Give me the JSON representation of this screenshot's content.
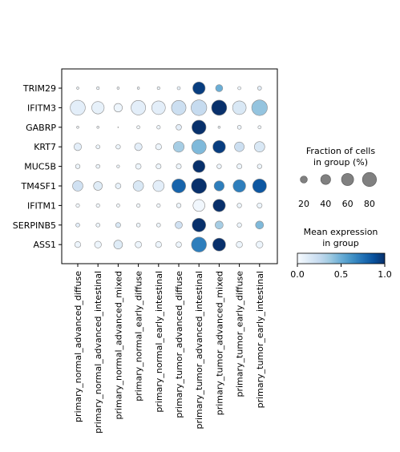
{
  "chart_data": {
    "type": "dotplot",
    "genes": [
      "TRIM29",
      "IFITM3",
      "GABRP",
      "KRT7",
      "MUC5B",
      "TM4SF1",
      "IFITM1",
      "SERPINB5",
      "ASS1"
    ],
    "groups": [
      "primary_normal_advanced_diffuse",
      "primary_normal_advanced_intestinal",
      "primary_normal_advanced_mixed",
      "primary_normal_early_diffuse",
      "primary_normal_early_intestinal",
      "primary_tumor_advanced_diffuse",
      "primary_tumor_advanced_intestinal",
      "primary_tumor_advanced_mixed",
      "primary_tumor_early_diffuse",
      "primary_tumor_early_intestinal"
    ],
    "fraction": [
      [
        2,
        3,
        2,
        2,
        3,
        4,
        60,
        20,
        4,
        6
      ],
      [
        88,
        60,
        28,
        82,
        72,
        82,
        95,
        90,
        72,
        95
      ],
      [
        2,
        2,
        0,
        4,
        5,
        12,
        78,
        2,
        6,
        4
      ],
      [
        22,
        6,
        8,
        22,
        14,
        45,
        82,
        62,
        36,
        42
      ],
      [
        8,
        6,
        3,
        12,
        10,
        10,
        58,
        8,
        10,
        8
      ],
      [
        42,
        30,
        12,
        42,
        48,
        75,
        90,
        40,
        62,
        75
      ],
      [
        5,
        5,
        4,
        5,
        5,
        8,
        55,
        60,
        8,
        10
      ],
      [
        6,
        6,
        10,
        6,
        6,
        20,
        72,
        25,
        8,
        25
      ],
      [
        14,
        18,
        30,
        16,
        14,
        12,
        88,
        65,
        15,
        18
      ]
    ],
    "expression": [
      [
        0.05,
        0.05,
        0.03,
        0.05,
        0.05,
        0.08,
        0.95,
        0.5,
        0.05,
        0.1
      ],
      [
        0.1,
        0.08,
        0.05,
        0.1,
        0.1,
        0.22,
        0.25,
        1.0,
        0.15,
        0.4
      ],
      [
        0.03,
        0.03,
        0.0,
        0.03,
        0.05,
        0.1,
        1.0,
        0.05,
        0.05,
        0.03
      ],
      [
        0.1,
        0.05,
        0.05,
        0.1,
        0.05,
        0.35,
        0.45,
        0.95,
        0.22,
        0.15
      ],
      [
        0.05,
        0.05,
        0.05,
        0.05,
        0.05,
        0.05,
        1.0,
        0.05,
        0.05,
        0.05
      ],
      [
        0.2,
        0.12,
        0.08,
        0.15,
        0.1,
        0.8,
        1.0,
        0.7,
        0.7,
        0.85
      ],
      [
        0.03,
        0.03,
        0.03,
        0.03,
        0.03,
        0.05,
        0.03,
        1.0,
        0.05,
        0.05
      ],
      [
        0.1,
        0.05,
        0.15,
        0.05,
        0.05,
        0.2,
        1.0,
        0.35,
        0.05,
        0.45
      ],
      [
        0.05,
        0.05,
        0.12,
        0.05,
        0.05,
        0.05,
        0.7,
        1.0,
        0.05,
        0.05
      ]
    ],
    "size_legend": {
      "title_lines": [
        "Fraction of cells",
        "in group (%)"
      ],
      "values": [
        20,
        40,
        60,
        80
      ],
      "labels": [
        "20",
        "40",
        "60",
        "80"
      ],
      "dot_color": "#808080"
    },
    "color_legend": {
      "title_lines": [
        "Mean expression",
        "in group"
      ],
      "range": [
        0.0,
        1.0
      ],
      "ticks": [
        "0.0",
        "0.5",
        "1.0"
      ],
      "colormap": "Blues"
    },
    "grid": false
  }
}
